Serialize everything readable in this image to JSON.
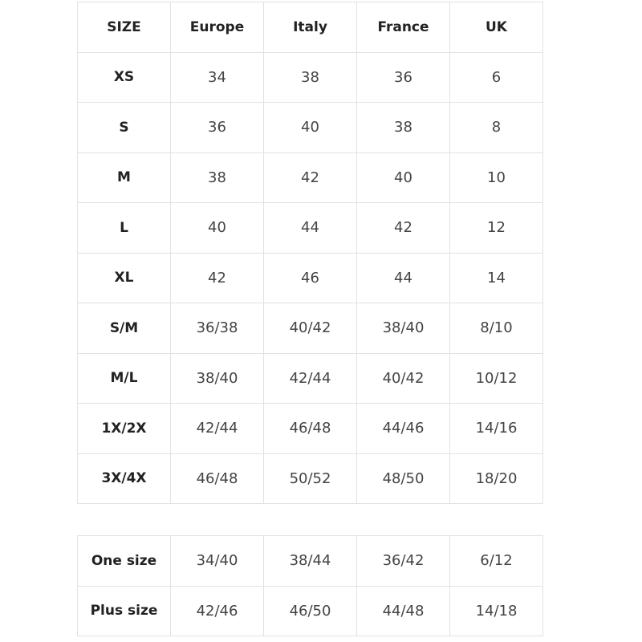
{
  "size_table": {
    "headers": [
      "SIZE",
      "Europe",
      "Italy",
      "France",
      "UK"
    ],
    "rows": [
      [
        "XS",
        "34",
        "38",
        "36",
        "6"
      ],
      [
        "S",
        "36",
        "40",
        "38",
        "8"
      ],
      [
        "M",
        "38",
        "42",
        "40",
        "10"
      ],
      [
        "L",
        "40",
        "44",
        "42",
        "12"
      ],
      [
        "XL",
        "42",
        "46",
        "44",
        "14"
      ],
      [
        "S/M",
        "36/38",
        "40/42",
        "38/40",
        "8/10"
      ],
      [
        "M/L",
        "38/40",
        "42/44",
        "40/42",
        "10/12"
      ],
      [
        "1X/2X",
        "42/44",
        "46/48",
        "44/46",
        "14/16"
      ],
      [
        "3X/4X",
        "46/48",
        "50/52",
        "48/50",
        "18/20"
      ]
    ]
  },
  "special_table": {
    "rows": [
      [
        "One size",
        "34/40",
        "38/44",
        "36/42",
        "6/12"
      ],
      [
        "Plus size",
        "42/46",
        "46/50",
        "44/48",
        "14/18"
      ]
    ]
  },
  "colors": {
    "border": "#e2e2e2",
    "header_text": "#222222",
    "value_text": "#444444"
  }
}
